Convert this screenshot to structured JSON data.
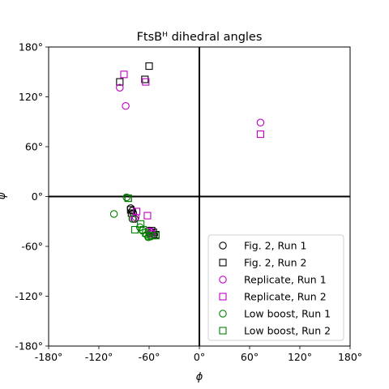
{
  "chart_data": {
    "type": "scatter",
    "title": "FtsBᴴ dihedral angles",
    "xlabel": "ϕ",
    "ylabel": "ψ",
    "xlim": [
      -180,
      180
    ],
    "ylim": [
      -180,
      180
    ],
    "xticks": [
      -180,
      -120,
      -60,
      0,
      60,
      120,
      180
    ],
    "yticks": [
      -180,
      -120,
      -60,
      0,
      60,
      120,
      180
    ],
    "xtick_labels": [
      "-180°",
      "-120°",
      "-60°",
      "0°",
      "60°",
      "120°",
      "180°"
    ],
    "ytick_labels": [
      "-180°",
      "-120°",
      "-60°",
      "0°",
      "60°",
      "120°",
      "180°"
    ],
    "zero_lines": true,
    "grid": false,
    "legend_position": "lower-right",
    "series": [
      {
        "name": "Fig. 2, Run 1",
        "marker": "circle",
        "color": "#000000",
        "points": [
          [
            -82,
            -14
          ],
          [
            -80,
            -17
          ],
          [
            -79,
            -20
          ],
          [
            -77,
            -27
          ],
          [
            -60,
            -41
          ],
          [
            -57,
            -43
          ],
          [
            -59,
            -45
          ],
          [
            -54,
            -46
          ]
        ]
      },
      {
        "name": "Fig. 2, Run 2",
        "marker": "square",
        "color": "#000000",
        "points": [
          [
            -95,
            138
          ],
          [
            -60,
            157
          ],
          [
            -65,
            141
          ],
          [
            -85,
            -2
          ],
          [
            -82,
            -16
          ],
          [
            -81,
            -20
          ],
          [
            -57,
            -41
          ],
          [
            -55,
            -43
          ],
          [
            -52,
            -46
          ]
        ]
      },
      {
        "name": "Replicate, Run 1",
        "marker": "circle",
        "color": "#bf00bf",
        "points": [
          [
            -95,
            131
          ],
          [
            -88,
            109
          ],
          [
            73,
            89
          ],
          [
            -79,
            -27
          ],
          [
            -76,
            -25
          ],
          [
            -58,
            -43
          ],
          [
            -56,
            -45
          ]
        ]
      },
      {
        "name": "Replicate, Run 2",
        "marker": "square",
        "color": "#bf00bf",
        "points": [
          [
            -90,
            147
          ],
          [
            -64,
            138
          ],
          [
            73,
            75
          ],
          [
            -75,
            -18
          ],
          [
            -62,
            -23
          ],
          [
            -60,
            -42
          ],
          [
            -57,
            -45
          ]
        ]
      },
      {
        "name": "Low boost, Run 1",
        "marker": "circle",
        "color": "#008000",
        "points": [
          [
            -102,
            -21
          ],
          [
            -87,
            -1
          ],
          [
            -80,
            -27
          ],
          [
            -71,
            -37
          ],
          [
            -68,
            -41
          ],
          [
            -63,
            -46
          ],
          [
            -61,
            -49
          ],
          [
            -58,
            -48
          ]
        ]
      },
      {
        "name": "Low boost, Run 2",
        "marker": "square",
        "color": "#008000",
        "points": [
          [
            -85,
            -2
          ],
          [
            -77,
            -40
          ],
          [
            -70,
            -33
          ],
          [
            -67,
            -40
          ],
          [
            -64,
            -44
          ],
          [
            -60,
            -48
          ],
          [
            -56,
            -47
          ],
          [
            -52,
            -47
          ]
        ]
      }
    ]
  }
}
